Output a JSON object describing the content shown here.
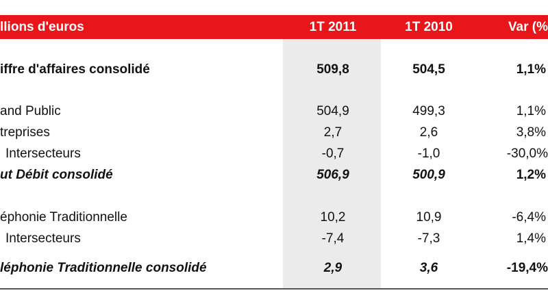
{
  "table": {
    "header": [
      "llions d'euros",
      "1T 2011",
      "1T 2010",
      "Var (%"
    ],
    "rows": [
      [
        "iffre d'affaires consolidé",
        "509,8",
        "504,5",
        "1,1%"
      ],
      [
        "and Public",
        "504,9",
        "499,3",
        "1,1%"
      ],
      [
        "treprises",
        "2,7",
        "2,6",
        "3,8%"
      ],
      [
        "Intersecteurs",
        "-0,7",
        "-1,0",
        "-30,0%"
      ],
      [
        "ut Débit consolidé",
        "506,9",
        "500,9",
        "1,2%"
      ],
      [
        "éphonie Traditionnelle",
        "10,2",
        "10,9",
        "-6,4%"
      ],
      [
        "Intersecteurs",
        "-7,4",
        "-7,3",
        "1,4%"
      ],
      [
        "léphonie Traditionnelle consolidé",
        "2,9",
        "3,6",
        "-19,4%"
      ]
    ]
  }
}
